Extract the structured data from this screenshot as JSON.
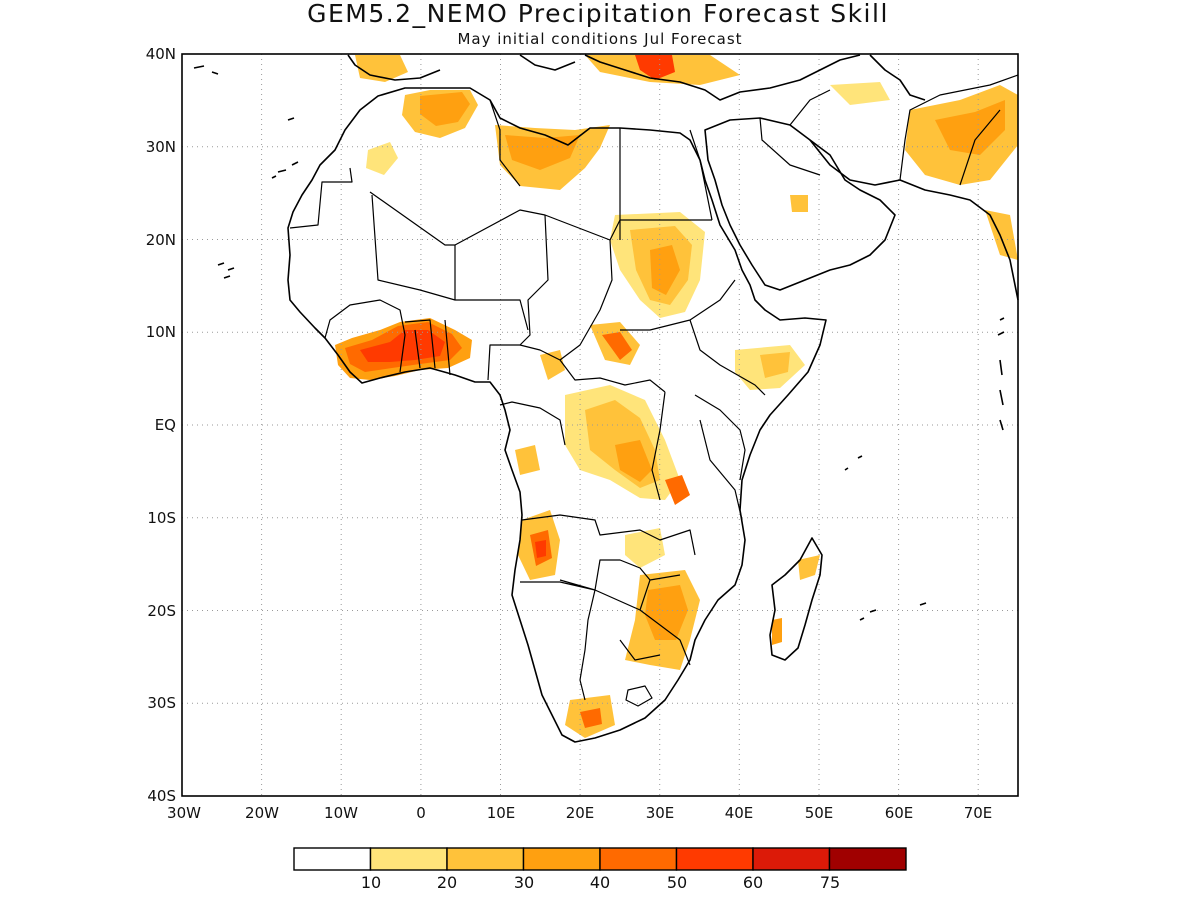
{
  "map": {
    "title": "GEM5.2_NEMO Precipitation Forecast Skill",
    "subtitle": "May initial conditions  Jul Forecast",
    "lat_labels": [
      "40N",
      "30N",
      "20N",
      "10N",
      "EQ",
      "10S",
      "20S",
      "30S",
      "40S"
    ],
    "lon_labels": [
      "30W",
      "20W",
      "10W",
      "0",
      "10E",
      "20E",
      "30E",
      "40E",
      "50E",
      "60E",
      "70E"
    ],
    "colorbar": {
      "colors": [
        "#ffffff",
        "#ffe47a",
        "#ffc23a",
        "#ffa010",
        "#ff6a00",
        "#ff3a00",
        "#dc1a08",
        "#a00000"
      ],
      "labels": [
        "10",
        "20",
        "30",
        "40",
        "50",
        "60",
        "75"
      ]
    },
    "skill_areas": [
      {
        "name": "west-africa-guinea",
        "level": 6,
        "lon": 0,
        "lat": 8
      },
      {
        "name": "libya-algeria",
        "level": 4,
        "lon": 8,
        "lat": 30
      },
      {
        "name": "sudan-chad",
        "level": 3,
        "lon": 28,
        "lat": 17
      },
      {
        "name": "great-lakes-congo",
        "level": 4,
        "lon": 27,
        "lat": -4
      },
      {
        "name": "angola",
        "level": 6,
        "lon": 14,
        "lat": -14
      },
      {
        "name": "mozambique-zimbabwe",
        "level": 4,
        "lon": 30,
        "lat": -20
      },
      {
        "name": "south-africa-cape",
        "level": 5,
        "lon": 21,
        "lat": -32
      },
      {
        "name": "pakistan",
        "level": 4,
        "lon": 67,
        "lat": 30
      },
      {
        "name": "eastern-mediterranean",
        "level": 6,
        "lon": 29,
        "lat": 39
      },
      {
        "name": "ethiopia-somalia",
        "level": 3,
        "lon": 43,
        "lat": 6
      },
      {
        "name": "madagascar",
        "level": 3,
        "lon": 47,
        "lat": -18
      }
    ]
  }
}
